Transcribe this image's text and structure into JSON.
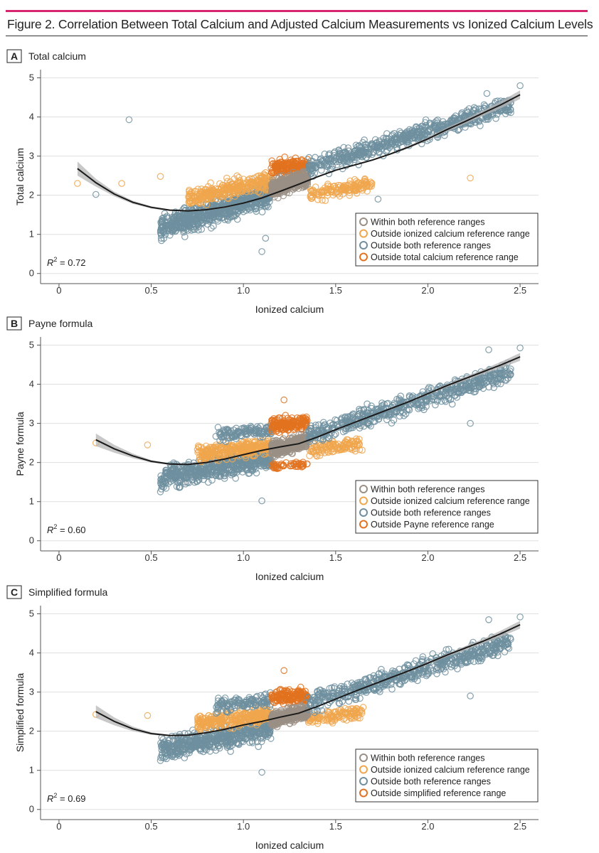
{
  "figure": {
    "title": "Figure 2. Correlation Between Total Calcium and Adjusted Calcium Measurements vs Ionized Calcium Levels"
  },
  "colors": {
    "within": "#9a8f85",
    "outside_ionized": "#f0a64c",
    "outside_both": "#6f8f9f",
    "outside_measure": "#e2721f",
    "curve": "#1a1a1a",
    "ci_band": "#b5b5b5",
    "gridline": "#e0e0e0"
  },
  "chart_data": [
    {
      "type": "scatter",
      "panel_letter": "A",
      "panel_title": "Total calcium",
      "xlabel": "Ionized calcium",
      "ylabel": "Total calcium",
      "xlim": [
        -0.1,
        2.6
      ],
      "ylim": [
        -0.15,
        5.1
      ],
      "xticks": [
        "0",
        "0.5",
        "1.0",
        "1.5",
        "2.0",
        "2.5"
      ],
      "xtick_values": [
        0,
        0.5,
        1.0,
        1.5,
        2.0,
        2.5
      ],
      "yticks": [
        "0",
        "1",
        "2",
        "3",
        "4",
        "5"
      ],
      "ytick_values": [
        0,
        1,
        2,
        3,
        4,
        5
      ],
      "r2_label": "R",
      "r2_sup": "2",
      "r2_value": " = 0.72",
      "legend": [
        {
          "label": "Within both reference ranges",
          "color_key": "within"
        },
        {
          "label": "Outside ionized calcium reference range",
          "color_key": "outside_ionized"
        },
        {
          "label": "Outside both reference ranges",
          "color_key": "outside_both"
        },
        {
          "label": "Outside total calcium reference range",
          "color_key": "outside_measure"
        }
      ],
      "fit_curve": {
        "x": [
          0.1,
          0.2,
          0.3,
          0.4,
          0.5,
          0.6,
          0.7,
          0.8,
          0.9,
          1.0,
          1.1,
          1.2,
          1.3,
          1.4,
          1.5,
          1.6,
          1.7,
          1.8,
          1.9,
          2.0,
          2.1,
          2.2,
          2.3,
          2.4,
          2.5
        ],
        "y": [
          2.68,
          2.32,
          2.03,
          1.82,
          1.69,
          1.62,
          1.6,
          1.63,
          1.7,
          1.8,
          1.93,
          2.1,
          2.28,
          2.47,
          2.64,
          2.77,
          2.9,
          3.06,
          3.24,
          3.44,
          3.67,
          3.88,
          4.1,
          4.32,
          4.57
        ],
        "ci_low": [
          2.5,
          2.22,
          1.97,
          1.78,
          1.66,
          1.6,
          1.58,
          1.61,
          1.68,
          1.79,
          1.92,
          2.09,
          2.27,
          2.46,
          2.63,
          2.76,
          2.89,
          3.04,
          3.21,
          3.4,
          3.62,
          3.82,
          4.03,
          4.23,
          4.46
        ],
        "ci_high": [
          2.86,
          2.42,
          2.09,
          1.86,
          1.72,
          1.64,
          1.62,
          1.65,
          1.72,
          1.81,
          1.94,
          2.11,
          2.29,
          2.48,
          2.65,
          2.78,
          2.91,
          3.08,
          3.27,
          3.48,
          3.72,
          3.94,
          4.17,
          4.41,
          4.68
        ]
      },
      "clusters": [
        {
          "category": "outside_both",
          "x_range": [
            0.55,
            1.15
          ],
          "y_center": [
            1.15,
            2.05
          ],
          "y_spread": 0.28,
          "n": 700
        },
        {
          "category": "outside_ionized",
          "x_range": [
            0.7,
            1.15
          ],
          "y_center": [
            1.95,
            2.35
          ],
          "y_spread": 0.2,
          "n": 300
        },
        {
          "category": "outside_ionized",
          "x_range": [
            1.35,
            1.7
          ],
          "y_center": [
            2.0,
            2.3
          ],
          "y_spread": 0.15,
          "n": 140
        },
        {
          "category": "outside_measure",
          "x_range": [
            1.15,
            1.35
          ],
          "y_center": [
            2.7,
            2.75
          ],
          "y_spread": 0.17,
          "n": 170
        },
        {
          "category": "within",
          "x_range": [
            1.15,
            1.35
          ],
          "y_center": [
            2.15,
            2.45
          ],
          "y_spread": 0.17,
          "n": 420
        },
        {
          "category": "outside_both",
          "x_range": [
            1.35,
            2.45
          ],
          "y_center": [
            2.7,
            4.3
          ],
          "y_spread": 0.2,
          "n": 620
        }
      ],
      "outliers": [
        {
          "x": 0.38,
          "y": 3.93,
          "category": "outside_both"
        },
        {
          "x": 0.2,
          "y": 2.02,
          "category": "outside_both"
        },
        {
          "x": 0.1,
          "y": 2.3,
          "category": "outside_ionized"
        },
        {
          "x": 0.34,
          "y": 2.3,
          "category": "outside_ionized"
        },
        {
          "x": 0.55,
          "y": 2.48,
          "category": "outside_ionized"
        },
        {
          "x": 1.1,
          "y": 0.56,
          "category": "outside_both"
        },
        {
          "x": 1.12,
          "y": 0.9,
          "category": "outside_both"
        },
        {
          "x": 2.23,
          "y": 2.44,
          "category": "outside_ionized"
        },
        {
          "x": 2.5,
          "y": 4.8,
          "category": "outside_both"
        },
        {
          "x": 2.32,
          "y": 4.6,
          "category": "outside_both"
        },
        {
          "x": 1.73,
          "y": 1.9,
          "category": "outside_both"
        }
      ]
    },
    {
      "type": "scatter",
      "panel_letter": "B",
      "panel_title": "Payne formula",
      "xlabel": "Ionized calcium",
      "ylabel": "Payne formula",
      "xlim": [
        -0.1,
        2.6
      ],
      "ylim": [
        -0.15,
        5.1
      ],
      "xticks": [
        "0",
        "0.5",
        "1.0",
        "1.5",
        "2.0",
        "2.5"
      ],
      "xtick_values": [
        0,
        0.5,
        1.0,
        1.5,
        2.0,
        2.5
      ],
      "yticks": [
        "0",
        "1",
        "2",
        "3",
        "4",
        "5"
      ],
      "ytick_values": [
        0,
        1,
        2,
        3,
        4,
        5
      ],
      "r2_label": "R",
      "r2_sup": "2",
      "r2_value": " = 0.60",
      "legend": [
        {
          "label": "Within both reference ranges",
          "color_key": "within"
        },
        {
          "label": "Outside ionized calcium reference range",
          "color_key": "outside_ionized"
        },
        {
          "label": "Outside both reference ranges",
          "color_key": "outside_both"
        },
        {
          "label": "Outside Payne reference range",
          "color_key": "outside_measure"
        }
      ],
      "fit_curve": {
        "x": [
          0.2,
          0.3,
          0.4,
          0.5,
          0.6,
          0.7,
          0.8,
          0.9,
          1.0,
          1.1,
          1.2,
          1.3,
          1.4,
          1.5,
          1.6,
          1.7,
          1.8,
          1.9,
          2.0,
          2.1,
          2.2,
          2.3,
          2.4,
          2.5
        ],
        "y": [
          2.58,
          2.35,
          2.17,
          2.03,
          1.96,
          1.95,
          2.0,
          2.09,
          2.2,
          2.31,
          2.4,
          2.48,
          2.65,
          2.84,
          3.02,
          3.2,
          3.38,
          3.56,
          3.76,
          3.96,
          4.14,
          4.32,
          4.5,
          4.7
        ],
        "ci_low": [
          2.42,
          2.25,
          2.11,
          2.0,
          1.94,
          1.93,
          1.98,
          2.08,
          2.19,
          2.3,
          2.39,
          2.47,
          2.64,
          2.83,
          3.01,
          3.19,
          3.36,
          3.54,
          3.73,
          3.92,
          4.09,
          4.26,
          4.42,
          4.6
        ],
        "ci_high": [
          2.74,
          2.45,
          2.23,
          2.06,
          1.98,
          1.97,
          2.02,
          2.1,
          2.21,
          2.32,
          2.41,
          2.49,
          2.66,
          2.85,
          3.03,
          3.21,
          3.4,
          3.58,
          3.79,
          4.0,
          4.19,
          4.38,
          4.58,
          4.8
        ]
      },
      "clusters": [
        {
          "category": "outside_both",
          "x_range": [
            0.55,
            1.15
          ],
          "y_center": [
            1.6,
            2.1
          ],
          "y_spread": 0.24,
          "n": 560
        },
        {
          "category": "outside_ionized",
          "x_range": [
            0.75,
            1.15
          ],
          "y_center": [
            2.2,
            2.45
          ],
          "y_spread": 0.17,
          "n": 300
        },
        {
          "category": "outside_both",
          "x_range": [
            0.85,
            1.15
          ],
          "y_center": [
            2.7,
            2.85
          ],
          "y_spread": 0.15,
          "n": 120
        },
        {
          "category": "outside_ionized",
          "x_range": [
            1.35,
            1.65
          ],
          "y_center": [
            2.3,
            2.5
          ],
          "y_spread": 0.14,
          "n": 120
        },
        {
          "category": "outside_measure",
          "x_range": [
            1.15,
            1.35
          ],
          "y_center": [
            2.95,
            3.0
          ],
          "y_spread": 0.16,
          "n": 170
        },
        {
          "category": "outside_measure",
          "x_range": [
            1.15,
            1.35
          ],
          "y_center": [
            1.9,
            1.95
          ],
          "y_spread": 0.06,
          "n": 50
        },
        {
          "category": "within",
          "x_range": [
            1.15,
            1.35
          ],
          "y_center": [
            2.35,
            2.55
          ],
          "y_spread": 0.16,
          "n": 380
        },
        {
          "category": "outside_both",
          "x_range": [
            1.35,
            2.45
          ],
          "y_center": [
            2.7,
            4.3
          ],
          "y_spread": 0.22,
          "n": 560
        }
      ],
      "outliers": [
        {
          "x": 0.2,
          "y": 2.5,
          "category": "outside_ionized"
        },
        {
          "x": 0.48,
          "y": 2.45,
          "category": "outside_ionized"
        },
        {
          "x": 0.55,
          "y": 1.25,
          "category": "outside_both"
        },
        {
          "x": 1.1,
          "y": 1.02,
          "category": "outside_both"
        },
        {
          "x": 1.22,
          "y": 3.6,
          "category": "outside_measure"
        },
        {
          "x": 2.5,
          "y": 4.93,
          "category": "outside_both"
        },
        {
          "x": 2.33,
          "y": 4.88,
          "category": "outside_both"
        },
        {
          "x": 2.23,
          "y": 3.0,
          "category": "outside_both"
        },
        {
          "x": 2.25,
          "y": 3.8,
          "category": "outside_both"
        }
      ]
    },
    {
      "type": "scatter",
      "panel_letter": "C",
      "panel_title": "Simplified formula",
      "xlabel": "Ionized calcium",
      "ylabel": "Simplified formula",
      "xlim": [
        -0.1,
        2.6
      ],
      "ylim": [
        -0.15,
        5.1
      ],
      "xticks": [
        "0",
        "0.5",
        "1.0",
        "1.5",
        "2.0",
        "2.5"
      ],
      "xtick_values": [
        0,
        0.5,
        1.0,
        1.5,
        2.0,
        2.5
      ],
      "yticks": [
        "0",
        "1",
        "2",
        "3",
        "4",
        "5"
      ],
      "ytick_values": [
        0,
        1,
        2,
        3,
        4,
        5
      ],
      "r2_label": "R",
      "r2_sup": "2",
      "r2_value": " = 0.69",
      "legend": [
        {
          "label": "Within both reference ranges",
          "color_key": "within"
        },
        {
          "label": "Outside ionized calcium reference range",
          "color_key": "outside_ionized"
        },
        {
          "label": "Outside both reference ranges",
          "color_key": "outside_both"
        },
        {
          "label": "Outside simplified reference range",
          "color_key": "outside_measure"
        }
      ],
      "fit_curve": {
        "x": [
          0.2,
          0.3,
          0.4,
          0.5,
          0.6,
          0.7,
          0.8,
          0.9,
          1.0,
          1.1,
          1.2,
          1.3,
          1.4,
          1.5,
          1.6,
          1.7,
          1.8,
          1.9,
          2.0,
          2.1,
          2.2,
          2.3,
          2.4,
          2.5
        ],
        "y": [
          2.5,
          2.25,
          2.06,
          1.94,
          1.89,
          1.9,
          1.96,
          2.05,
          2.16,
          2.25,
          2.36,
          2.46,
          2.63,
          2.82,
          3.01,
          3.19,
          3.37,
          3.55,
          3.74,
          3.94,
          4.12,
          4.3,
          4.5,
          4.72
        ],
        "ci_low": [
          2.34,
          2.15,
          2.0,
          1.91,
          1.87,
          1.88,
          1.94,
          2.04,
          2.15,
          2.24,
          2.35,
          2.45,
          2.62,
          2.81,
          3.0,
          3.18,
          3.35,
          3.53,
          3.71,
          3.9,
          4.07,
          4.24,
          4.42,
          4.62
        ],
        "ci_high": [
          2.66,
          2.35,
          2.12,
          1.97,
          1.91,
          1.92,
          1.98,
          2.06,
          2.17,
          2.26,
          2.37,
          2.47,
          2.64,
          2.83,
          3.02,
          3.2,
          3.39,
          3.57,
          3.77,
          3.98,
          4.17,
          4.36,
          4.58,
          4.82
        ]
      },
      "clusters": [
        {
          "category": "outside_both",
          "x_range": [
            0.55,
            1.15
          ],
          "y_center": [
            1.55,
            2.05
          ],
          "y_spread": 0.24,
          "n": 560
        },
        {
          "category": "outside_ionized",
          "x_range": [
            0.75,
            1.15
          ],
          "y_center": [
            2.2,
            2.45
          ],
          "y_spread": 0.17,
          "n": 300
        },
        {
          "category": "outside_both",
          "x_range": [
            0.85,
            1.15
          ],
          "y_center": [
            2.65,
            2.8
          ],
          "y_spread": 0.15,
          "n": 120
        },
        {
          "category": "outside_ionized",
          "x_range": [
            1.35,
            1.65
          ],
          "y_center": [
            2.3,
            2.5
          ],
          "y_spread": 0.14,
          "n": 120
        },
        {
          "category": "outside_measure",
          "x_range": [
            1.15,
            1.35
          ],
          "y_center": [
            2.85,
            2.9
          ],
          "y_spread": 0.15,
          "n": 160
        },
        {
          "category": "within",
          "x_range": [
            1.15,
            1.35
          ],
          "y_center": [
            2.3,
            2.5
          ],
          "y_spread": 0.16,
          "n": 380
        },
        {
          "category": "outside_both",
          "x_range": [
            1.35,
            2.45
          ],
          "y_center": [
            2.7,
            4.3
          ],
          "y_spread": 0.22,
          "n": 560
        }
      ],
      "outliers": [
        {
          "x": 0.2,
          "y": 2.43,
          "category": "outside_ionized"
        },
        {
          "x": 0.48,
          "y": 2.4,
          "category": "outside_ionized"
        },
        {
          "x": 0.55,
          "y": 1.25,
          "category": "outside_both"
        },
        {
          "x": 1.1,
          "y": 0.95,
          "category": "outside_both"
        },
        {
          "x": 1.22,
          "y": 3.55,
          "category": "outside_measure"
        },
        {
          "x": 2.5,
          "y": 4.92,
          "category": "outside_both"
        },
        {
          "x": 2.33,
          "y": 4.85,
          "category": "outside_both"
        },
        {
          "x": 2.23,
          "y": 2.9,
          "category": "outside_both"
        },
        {
          "x": 2.25,
          "y": 3.78,
          "category": "outside_both"
        }
      ]
    }
  ]
}
